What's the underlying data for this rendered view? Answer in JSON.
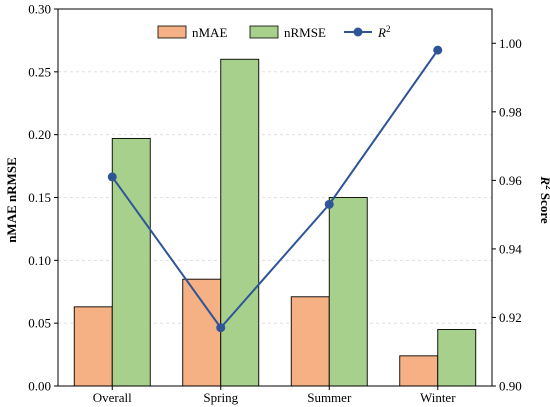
{
  "chart_data": {
    "type": "bar",
    "categories": [
      "Overall",
      "Spring",
      "Summer",
      "Winter"
    ],
    "series": [
      {
        "name": "nMAE",
        "kind": "bar",
        "axis": "left",
        "color": "#f5b183",
        "values": [
          0.063,
          0.085,
          0.071,
          0.024
        ]
      },
      {
        "name": "nRMSE",
        "kind": "bar",
        "axis": "left",
        "color": "#a8d08d",
        "values": [
          0.197,
          0.26,
          0.15,
          0.045
        ]
      },
      {
        "name": "R",
        "name_sup": "2",
        "kind": "line",
        "axis": "right",
        "color": "#2f5597",
        "values": [
          0.961,
          0.917,
          0.953,
          0.998
        ]
      }
    ],
    "ylabel_left": "nMAE  nRMSE",
    "ylabel_right": {
      "main": "R",
      "sup": "2",
      "rest": " Score"
    },
    "ylim_left": [
      0,
      0.3
    ],
    "ylim_right": [
      0.9,
      1.01
    ],
    "yticks_left": [
      "0.00",
      "0.05",
      "0.10",
      "0.15",
      "0.20",
      "0.25",
      "0.30"
    ],
    "yticks_right": [
      "0.90",
      "0.92",
      "0.94",
      "0.96",
      "0.98",
      "1.00"
    ],
    "legend_position": "top-center",
    "grid": true
  }
}
